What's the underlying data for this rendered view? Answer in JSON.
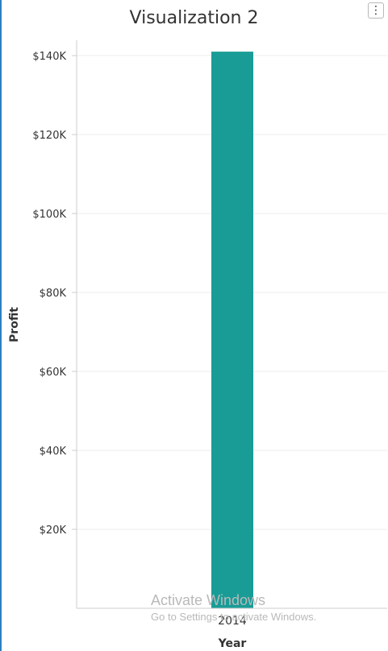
{
  "title": "Visualization 2",
  "menu": {
    "icon": "more-vertical-icon",
    "glyph": "⋮"
  },
  "colors": {
    "bar": "#199c96",
    "grid": "#eeeeee",
    "axis": "#cccccc",
    "text": "#333333",
    "left_accent": "#2f7fc0"
  },
  "chart_data": {
    "type": "bar",
    "categories": [
      "2014"
    ],
    "values": [
      141000
    ],
    "title": "Visualization 2",
    "xlabel": "Year",
    "ylabel": "Profit",
    "ylim": [
      0,
      140000
    ],
    "yticks": [
      20000,
      40000,
      60000,
      80000,
      100000,
      120000,
      140000
    ],
    "ytick_labels": [
      "$20K",
      "$40K",
      "$60K",
      "$80K",
      "$100K",
      "$120K",
      "$140K"
    ],
    "grid": true,
    "legend": "none"
  },
  "watermark": {
    "line1": "Activate Windows",
    "line2": "Go to Settings to activate Windows."
  }
}
